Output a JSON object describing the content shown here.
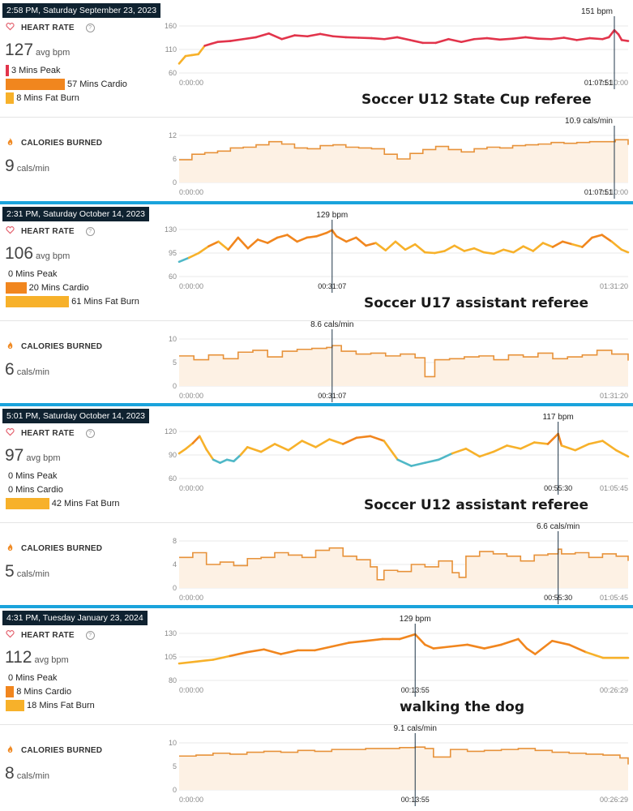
{
  "labels": {
    "heart_rate": "HEART RATE",
    "calories": "CALORIES BURNED",
    "avg_unit": "avg bpm",
    "cal_unit": "cals/min",
    "help": "?"
  },
  "colors": {
    "divider": "#1aa3dc",
    "peak": "#e2344b",
    "cardio": "#f1861e",
    "fatburn": "#f7b12a",
    "below": "#4fb8c7",
    "cal_line": "#e7923a",
    "cal_fill": "#fdf1e4"
  },
  "sessions": [
    {
      "timestamp": "2:58 PM, Saturday September 23, 2023",
      "avg_bpm": "127",
      "zones": [
        {
          "label": "3 Mins Peak",
          "minutes": 3
        },
        {
          "label": "57 Mins Cardio",
          "minutes": 57
        },
        {
          "label": "8 Mins Fat Burn",
          "minutes": 8
        }
      ],
      "cals": "9",
      "caption": "Soccer U12 State Cup referee"
    },
    {
      "timestamp": "2:31 PM, Saturday October 14, 2023",
      "avg_bpm": "106",
      "zones": [
        {
          "label": "0 Mins Peak",
          "minutes": 0
        },
        {
          "label": "20 Mins Cardio",
          "minutes": 20
        },
        {
          "label": "61 Mins Fat Burn",
          "minutes": 61
        }
      ],
      "cals": "6",
      "caption": "Soccer U17 assistant referee"
    },
    {
      "timestamp": "5:01 PM, Saturday October 14, 2023",
      "avg_bpm": "97",
      "zones": [
        {
          "label": "0 Mins Peak",
          "minutes": 0
        },
        {
          "label": "0 Mins Cardio",
          "minutes": 0
        },
        {
          "label": "42 Mins Fat Burn",
          "minutes": 42
        }
      ],
      "cals": "5",
      "caption": "Soccer U12 assistant referee"
    },
    {
      "timestamp": "4:31 PM, Tuesday January 23, 2024",
      "avg_bpm": "112",
      "zones": [
        {
          "label": "0 Mins Peak",
          "minutes": 0
        },
        {
          "label": "8 Mins Cardio",
          "minutes": 8
        },
        {
          "label": "18 Mins Fat Burn",
          "minutes": 18
        }
      ],
      "cals": "8",
      "caption": "walking the dog"
    }
  ],
  "chart_data": [
    {
      "type": "line",
      "title": "HEART RATE",
      "yticks": [
        60,
        110,
        160
      ],
      "ylim": [
        60,
        160
      ],
      "xticks": [
        "0:00:00",
        "01:10:00"
      ],
      "x_end_min": 70,
      "marker": {
        "x_min": 67.85,
        "x_label": "01:07:51",
        "label": "151 bpm"
      },
      "x": [
        0,
        1,
        2,
        3,
        4,
        5,
        6,
        8,
        10,
        12,
        14,
        16,
        18,
        20,
        22,
        24,
        26,
        28,
        30,
        32,
        34,
        36,
        38,
        40,
        42,
        44,
        46,
        48,
        50,
        52,
        54,
        56,
        58,
        60,
        62,
        64,
        66,
        67,
        67.85,
        68.5,
        69,
        70
      ],
      "y": [
        80,
        96,
        98,
        100,
        118,
        122,
        126,
        128,
        132,
        136,
        144,
        132,
        140,
        138,
        143,
        138,
        136,
        135,
        134,
        132,
        136,
        130,
        124,
        124,
        132,
        126,
        132,
        134,
        131,
        133,
        136,
        133,
        132,
        135,
        130,
        134,
        132,
        136,
        151,
        142,
        130,
        128
      ]
    },
    {
      "type": "area",
      "title": "CALORIES BURNED",
      "yticks": [
        0,
        6,
        12
      ],
      "ylim": [
        0,
        12
      ],
      "xticks": [
        "0:00:00",
        "01:10:00"
      ],
      "x_end_min": 70,
      "marker": {
        "x_min": 67.85,
        "x_label": "01:07:51",
        "label": "10.9 cals/min"
      },
      "x": [
        0,
        2,
        4,
        6,
        8,
        10,
        12,
        14,
        16,
        18,
        20,
        22,
        24,
        26,
        28,
        30,
        32,
        34,
        36,
        38,
        40,
        42,
        44,
        46,
        48,
        50,
        52,
        54,
        56,
        58,
        60,
        62,
        64,
        66,
        68,
        70
      ],
      "y": [
        5.8,
        7.2,
        7.6,
        8.0,
        8.8,
        9.0,
        9.6,
        10.4,
        9.8,
        8.8,
        8.6,
        9.4,
        9.6,
        9.0,
        8.8,
        8.6,
        7.2,
        6.0,
        7.4,
        8.4,
        9.2,
        8.4,
        7.8,
        8.6,
        9.0,
        8.8,
        9.4,
        9.6,
        9.8,
        10.2,
        10.0,
        10.2,
        10.4,
        10.4,
        10.9,
        9.6
      ]
    },
    {
      "type": "line",
      "title": "HEART RATE",
      "yticks": [
        60,
        95,
        130
      ],
      "ylim": [
        60,
        130
      ],
      "xticks": [
        "0:00:00",
        "01:31:20"
      ],
      "x_end_min": 91.33,
      "marker": {
        "x_min": 31.12,
        "x_label": "00:31:07",
        "label": "129 bpm"
      },
      "x": [
        0,
        2,
        4,
        6,
        8,
        10,
        12,
        14,
        16,
        18,
        20,
        22,
        24,
        26,
        28,
        30,
        31.12,
        32,
        34,
        36,
        38,
        40,
        42,
        44,
        46,
        48,
        50,
        52,
        54,
        56,
        58,
        60,
        62,
        64,
        66,
        68,
        70,
        72,
        74,
        76,
        78,
        80,
        82,
        84,
        86,
        88,
        90,
        91.33
      ],
      "y": [
        82,
        88,
        95,
        105,
        112,
        100,
        118,
        102,
        115,
        110,
        118,
        122,
        112,
        118,
        120,
        125,
        129,
        120,
        112,
        118,
        106,
        110,
        99,
        112,
        100,
        108,
        96,
        95,
        98,
        106,
        98,
        102,
        96,
        94,
        100,
        96,
        105,
        98,
        110,
        104,
        112,
        108,
        104,
        118,
        122,
        112,
        100,
        96
      ]
    },
    {
      "type": "area",
      "title": "CALORIES BURNED",
      "yticks": [
        0,
        5,
        10
      ],
      "ylim": [
        0,
        10
      ],
      "xticks": [
        "0:00:00",
        "01:31:20"
      ],
      "x_end_min": 91.33,
      "marker": {
        "x_min": 31.12,
        "x_label": "00:31:07",
        "label": "8.6 cals/min"
      },
      "x": [
        0,
        3,
        6,
        9,
        12,
        15,
        18,
        21,
        24,
        27,
        30,
        31.12,
        33,
        36,
        39,
        42,
        45,
        48,
        50,
        52,
        55,
        58,
        61,
        64,
        67,
        70,
        73,
        76,
        79,
        82,
        85,
        88,
        91.33
      ],
      "y": [
        6.4,
        5.6,
        6.6,
        5.8,
        7.2,
        7.6,
        6.2,
        7.4,
        7.8,
        8.0,
        8.2,
        8.6,
        7.4,
        6.8,
        7.0,
        6.4,
        6.8,
        6.0,
        2.0,
        5.6,
        5.8,
        6.2,
        6.4,
        5.6,
        6.6,
        6.2,
        7.0,
        5.8,
        6.2,
        6.6,
        7.6,
        6.8,
        5.4
      ]
    },
    {
      "type": "line",
      "title": "HEART RATE",
      "yticks": [
        60,
        90,
        120
      ],
      "ylim": [
        60,
        120
      ],
      "xticks": [
        "0:00:00",
        "01:05:45"
      ],
      "x_end_min": 65.75,
      "marker": {
        "x_min": 55.5,
        "x_label": "00:55:30",
        "label": "117 bpm"
      },
      "x": [
        0,
        1,
        2,
        3,
        4,
        5,
        6,
        7,
        8,
        9,
        10,
        12,
        14,
        16,
        18,
        20,
        22,
        24,
        26,
        28,
        30,
        32,
        34,
        36,
        38,
        40,
        42,
        44,
        46,
        48,
        50,
        52,
        54,
        55.5,
        56,
        58,
        60,
        62,
        64,
        65.75
      ],
      "y": [
        92,
        98,
        105,
        114,
        97,
        84,
        80,
        84,
        82,
        90,
        100,
        94,
        104,
        96,
        108,
        100,
        110,
        104,
        112,
        114,
        108,
        84,
        76,
        80,
        84,
        92,
        98,
        88,
        94,
        102,
        98,
        106,
        104,
        117,
        102,
        96,
        104,
        108,
        96,
        88
      ]
    },
    {
      "type": "area",
      "title": "CALORIES BURNED",
      "yticks": [
        0,
        4,
        8
      ],
      "ylim": [
        0,
        8
      ],
      "xticks": [
        "0:00:00",
        "01:05:45"
      ],
      "x_end_min": 65.75,
      "marker": {
        "x_min": 55.5,
        "x_label": "00:55:30",
        "label": "6.6 cals/min"
      },
      "x": [
        0,
        2,
        4,
        6,
        8,
        10,
        12,
        14,
        16,
        18,
        20,
        22,
        24,
        26,
        28,
        29,
        30,
        32,
        34,
        36,
        38,
        40,
        41,
        42,
        44,
        46,
        48,
        50,
        52,
        54,
        55.5,
        56,
        58,
        60,
        62,
        64,
        65.75
      ],
      "y": [
        5.2,
        6.0,
        4.0,
        4.4,
        3.8,
        5.0,
        5.2,
        6.0,
        5.6,
        5.2,
        6.4,
        6.8,
        5.4,
        4.8,
        3.6,
        1.4,
        3.0,
        2.8,
        4.0,
        3.6,
        4.6,
        2.6,
        1.8,
        5.4,
        6.2,
        5.8,
        5.4,
        4.6,
        5.6,
        5.8,
        6.6,
        5.8,
        6.0,
        5.2,
        5.8,
        5.4,
        4.6
      ]
    },
    {
      "type": "line",
      "title": "HEART RATE",
      "yticks": [
        80,
        105,
        130
      ],
      "ylim": [
        80,
        130
      ],
      "xticks": [
        "0:00:00",
        "00:26:29"
      ],
      "x_end_min": 26.48,
      "marker": {
        "x_min": 13.92,
        "x_label": "00:13:55",
        "label": "129 bpm"
      },
      "x": [
        0,
        1,
        2,
        3,
        4,
        5,
        6,
        7,
        8,
        9,
        10,
        11,
        12,
        13,
        13.92,
        14.5,
        15,
        16,
        17,
        18,
        19,
        20,
        20.5,
        21,
        22,
        23,
        24,
        25,
        26.48
      ],
      "y": [
        98,
        100,
        102,
        106,
        110,
        113,
        108,
        112,
        112,
        116,
        120,
        122,
        124,
        124,
        129,
        118,
        114,
        116,
        118,
        114,
        118,
        124,
        114,
        108,
        122,
        118,
        110,
        104,
        104
      ]
    },
    {
      "type": "area",
      "title": "CALORIES BURNED",
      "yticks": [
        0,
        5,
        10
      ],
      "ylim": [
        0,
        10
      ],
      "xticks": [
        "0:00:00",
        "00:26:29"
      ],
      "x_end_min": 26.48,
      "marker": {
        "x_min": 13.92,
        "x_label": "00:13:55",
        "label": "9.1 cals/min"
      },
      "x": [
        0,
        1,
        2,
        3,
        4,
        5,
        6,
        7,
        8,
        9,
        10,
        11,
        12,
        13,
        13.92,
        14.5,
        15,
        16,
        17,
        18,
        19,
        20,
        21,
        22,
        23,
        24,
        25,
        26,
        26.48
      ],
      "y": [
        7.2,
        7.4,
        7.8,
        7.6,
        8.0,
        8.2,
        8.0,
        8.4,
        8.2,
        8.6,
        8.6,
        8.8,
        8.8,
        9.0,
        9.1,
        8.8,
        7.0,
        8.6,
        8.2,
        8.4,
        8.6,
        8.8,
        8.4,
        8.0,
        7.8,
        7.6,
        7.4,
        6.8,
        5.4
      ]
    }
  ]
}
